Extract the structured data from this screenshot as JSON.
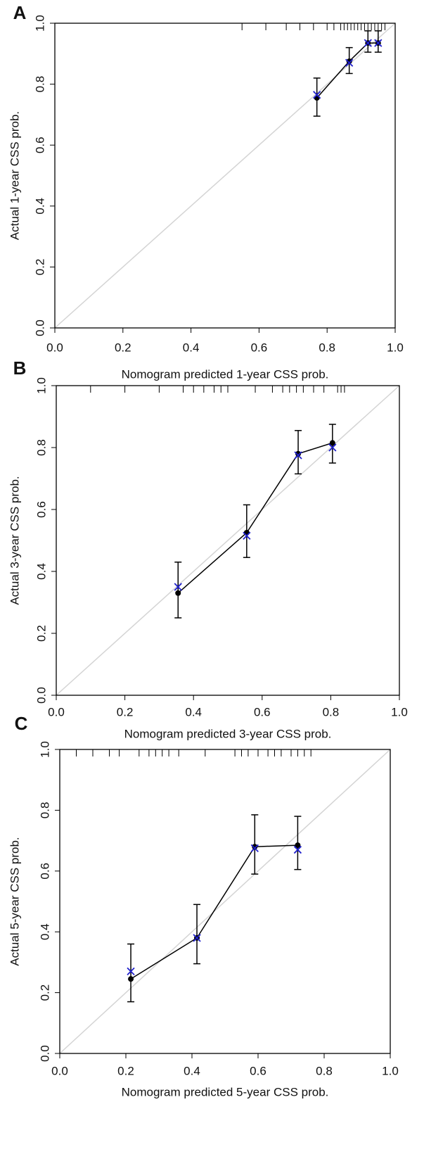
{
  "chart_data": [
    {
      "type": "calibration",
      "panel": "A",
      "x_label": "Nomogram predicted 1-year CSS prob.",
      "y_label": "Actual 1-year CSS prob.",
      "xlim": [
        0,
        1
      ],
      "ylim": [
        0,
        1
      ],
      "xticks": [
        {
          "value": 0,
          "label": "0.0"
        },
        0.2,
        0.4,
        0.6,
        0.8,
        {
          "value": 1,
          "label": "1.0"
        }
      ],
      "yticks": [
        {
          "value": 0,
          "label": "0.0"
        },
        0.2,
        0.4,
        0.6,
        0.8,
        {
          "value": 1,
          "label": "1.0"
        }
      ],
      "x": [
        0.77,
        0.865,
        0.92,
        0.95
      ],
      "series": [
        {
          "color": "#000000",
          "values": [
            0.755,
            0.875,
            0.935,
            0.935
          ],
          "lower": [
            0.695,
            0.835,
            0.905,
            0.905
          ],
          "upper": [
            0.82,
            0.92,
            0.975,
            0.975
          ]
        },
        {
          "color": "#1f1fcc",
          "values": [
            0.765,
            0.87,
            0.935,
            0.935
          ]
        }
      ],
      "rug": [
        0.55,
        0.62,
        0.68,
        0.72,
        0.76,
        0.8,
        0.82,
        0.84,
        0.85,
        0.86,
        0.87,
        0.88,
        0.89,
        0.9,
        0.91,
        0.92,
        0.93,
        0.94,
        0.95,
        0.96,
        0.97
      ]
    },
    {
      "type": "calibration",
      "panel": "B",
      "x_label": "Nomogram predicted 3-year CSS prob.",
      "y_label": "Actual 3-year CSS prob.",
      "xlim": [
        0,
        1
      ],
      "ylim": [
        0,
        1
      ],
      "xticks": [
        {
          "value": 0,
          "label": "0.0"
        },
        0.2,
        0.4,
        0.6,
        0.8,
        {
          "value": 1,
          "label": "1.0"
        }
      ],
      "yticks": [
        {
          "value": 0,
          "label": "0.0"
        },
        0.2,
        0.4,
        0.6,
        0.8,
        {
          "value": 1,
          "label": "1.0"
        }
      ],
      "x": [
        0.355,
        0.555,
        0.705,
        0.805
      ],
      "series": [
        {
          "color": "#000000",
          "values": [
            0.33,
            0.525,
            0.78,
            0.815
          ],
          "lower": [
            0.25,
            0.445,
            0.715,
            0.75
          ],
          "upper": [
            0.43,
            0.615,
            0.855,
            0.875
          ]
        },
        {
          "color": "#1f1fcc",
          "values": [
            0.35,
            0.515,
            0.775,
            0.8
          ]
        }
      ],
      "rug": [
        0.1,
        0.2,
        0.3,
        0.37,
        0.4,
        0.43,
        0.46,
        0.48,
        0.5,
        0.58,
        0.63,
        0.66,
        0.68,
        0.7,
        0.72,
        0.75,
        0.78,
        0.82,
        0.83,
        0.84
      ]
    },
    {
      "type": "calibration",
      "panel": "C",
      "x_label": "Nomogram predicted 5-year CSS prob.",
      "y_label": "Actual 5-year CSS prob.",
      "xlim": [
        0,
        1
      ],
      "ylim": [
        0,
        1
      ],
      "xticks": [
        {
          "value": 0,
          "label": "0.0"
        },
        0.2,
        0.4,
        0.6,
        0.8,
        {
          "value": 1,
          "label": "1.0"
        }
      ],
      "yticks": [
        {
          "value": 0,
          "label": "0.0"
        },
        0.2,
        0.4,
        0.6,
        0.8,
        {
          "value": 1,
          "label": "1.0"
        }
      ],
      "x": [
        0.215,
        0.415,
        0.59,
        0.72
      ],
      "series": [
        {
          "color": "#000000",
          "values": [
            0.245,
            0.38,
            0.68,
            0.685
          ],
          "lower": [
            0.17,
            0.295,
            0.59,
            0.605
          ],
          "upper": [
            0.36,
            0.49,
            0.785,
            0.78
          ]
        },
        {
          "color": "#1f1fcc",
          "values": [
            0.27,
            0.38,
            0.675,
            0.67
          ]
        }
      ],
      "rug": [
        0.05,
        0.1,
        0.15,
        0.18,
        0.24,
        0.27,
        0.29,
        0.31,
        0.33,
        0.36,
        0.44,
        0.53,
        0.55,
        0.57,
        0.6,
        0.63,
        0.65,
        0.67,
        0.7,
        0.72,
        0.74,
        0.76
      ]
    }
  ]
}
